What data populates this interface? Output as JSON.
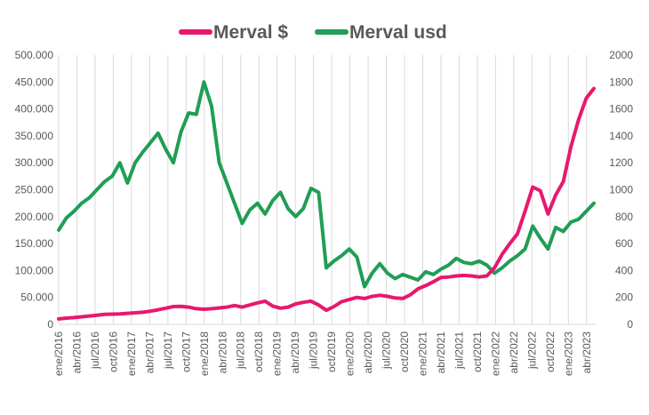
{
  "chart_data": {
    "type": "line",
    "title": "",
    "legend_position": "top",
    "grid": {
      "x": true,
      "y": false
    },
    "x_tick_labels": [
      "ene/2016",
      "abr/2016",
      "jul/2016",
      "oct/2016",
      "ene/2017",
      "abr/2017",
      "jul/2017",
      "oct/2017",
      "ene/2018",
      "abr/2018",
      "jul/2018",
      "oct/2018",
      "ene/2019",
      "abr/2019",
      "jul/2019",
      "oct/2019",
      "ene/2020",
      "abr/2020",
      "jul/2020",
      "oct/2020",
      "ene/2021",
      "abr/2021",
      "jul/2021",
      "oct/2021",
      "ene/2022",
      "abr/2022",
      "jul/2022",
      "oct/2022",
      "ene/2023",
      "abr/2023"
    ],
    "y_left": {
      "range": [
        0,
        500000
      ],
      "ticks": [
        0,
        50000,
        100000,
        150000,
        200000,
        250000,
        300000,
        350000,
        400000,
        450000,
        500000
      ],
      "tick_labels": [
        "0",
        "50.000",
        "100.000",
        "150.000",
        "200.000",
        "250.000",
        "300.000",
        "350.000",
        "400.000",
        "450.000",
        "500.000"
      ]
    },
    "y_right": {
      "range": [
        0,
        2000
      ],
      "ticks": [
        0,
        200,
        400,
        600,
        800,
        1000,
        1200,
        1400,
        1600,
        1800,
        2000
      ],
      "tick_labels": [
        "0",
        "200",
        "400",
        "600",
        "800",
        "1000",
        "1200",
        "1400",
        "1600",
        "1800",
        "2000"
      ]
    },
    "series": [
      {
        "name": "Merval $",
        "axis": "left",
        "color": "#e8186e",
        "points": [
          [
            0,
            10000
          ],
          [
            1,
            11500
          ],
          [
            2,
            12500
          ],
          [
            3,
            14000
          ],
          [
            4,
            15500
          ],
          [
            5,
            17000
          ],
          [
            6,
            18500
          ],
          [
            7,
            19000
          ],
          [
            8,
            19500
          ],
          [
            9,
            20500
          ],
          [
            10,
            21500
          ],
          [
            11,
            22500
          ],
          [
            12,
            24500
          ],
          [
            13,
            27000
          ],
          [
            14,
            30000
          ],
          [
            15,
            33000
          ],
          [
            16,
            33500
          ],
          [
            17,
            32000
          ],
          [
            18,
            29000
          ],
          [
            19,
            28000
          ],
          [
            20,
            29000
          ],
          [
            21,
            30500
          ],
          [
            22,
            32000
          ],
          [
            23,
            35000
          ],
          [
            24,
            32000
          ],
          [
            25,
            36000
          ],
          [
            26,
            40000
          ],
          [
            27,
            43000
          ],
          [
            28,
            34000
          ],
          [
            29,
            30000
          ],
          [
            30,
            32000
          ],
          [
            31,
            38000
          ],
          [
            32,
            41000
          ],
          [
            33,
            43000
          ],
          [
            34,
            36000
          ],
          [
            35,
            26000
          ],
          [
            36,
            33000
          ],
          [
            37,
            42000
          ],
          [
            38,
            46000
          ],
          [
            39,
            50000
          ],
          [
            40,
            48000
          ],
          [
            41,
            52000
          ],
          [
            42,
            54000
          ],
          [
            43,
            52000
          ],
          [
            44,
            49000
          ],
          [
            45,
            48000
          ],
          [
            46,
            55000
          ],
          [
            47,
            66000
          ],
          [
            48,
            72000
          ],
          [
            49,
            79000
          ],
          [
            50,
            87000
          ],
          [
            51,
            88000
          ],
          [
            52,
            90000
          ],
          [
            53,
            91000
          ],
          [
            54,
            90000
          ],
          [
            55,
            88000
          ],
          [
            56,
            90000
          ],
          [
            57,
            105000
          ],
          [
            58,
            130000
          ],
          [
            59,
            150000
          ],
          [
            60,
            168000
          ],
          [
            61,
            210000
          ],
          [
            62,
            255000
          ],
          [
            63,
            248000
          ],
          [
            64,
            205000
          ],
          [
            65,
            240000
          ],
          [
            66,
            265000
          ],
          [
            67,
            330000
          ],
          [
            68,
            380000
          ],
          [
            69,
            420000
          ],
          [
            70,
            438000
          ]
        ]
      },
      {
        "name": "Merval usd",
        "axis": "right",
        "color": "#1f9e55",
        "points": [
          [
            0,
            700
          ],
          [
            1,
            790
          ],
          [
            2,
            840
          ],
          [
            3,
            900
          ],
          [
            4,
            940
          ],
          [
            5,
            1000
          ],
          [
            6,
            1060
          ],
          [
            7,
            1100
          ],
          [
            8,
            1200
          ],
          [
            9,
            1050
          ],
          [
            10,
            1200
          ],
          [
            11,
            1280
          ],
          [
            12,
            1350
          ],
          [
            13,
            1420
          ],
          [
            14,
            1300
          ],
          [
            15,
            1200
          ],
          [
            16,
            1430
          ],
          [
            17,
            1570
          ],
          [
            18,
            1560
          ],
          [
            19,
            1800
          ],
          [
            20,
            1620
          ],
          [
            21,
            1200
          ],
          [
            22,
            1050
          ],
          [
            23,
            900
          ],
          [
            24,
            750
          ],
          [
            25,
            850
          ],
          [
            26,
            900
          ],
          [
            27,
            820
          ],
          [
            28,
            920
          ],
          [
            29,
            980
          ],
          [
            30,
            860
          ],
          [
            31,
            800
          ],
          [
            32,
            860
          ],
          [
            33,
            1010
          ],
          [
            34,
            980
          ],
          [
            35,
            420
          ],
          [
            36,
            470
          ],
          [
            37,
            510
          ],
          [
            38,
            560
          ],
          [
            39,
            500
          ],
          [
            40,
            280
          ],
          [
            41,
            380
          ],
          [
            42,
            450
          ],
          [
            43,
            380
          ],
          [
            44,
            340
          ],
          [
            45,
            370
          ],
          [
            46,
            350
          ],
          [
            47,
            330
          ],
          [
            48,
            390
          ],
          [
            49,
            370
          ],
          [
            50,
            410
          ],
          [
            51,
            440
          ],
          [
            52,
            490
          ],
          [
            53,
            460
          ],
          [
            54,
            450
          ],
          [
            55,
            470
          ],
          [
            56,
            440
          ],
          [
            57,
            380
          ],
          [
            58,
            420
          ],
          [
            59,
            470
          ],
          [
            60,
            510
          ],
          [
            61,
            560
          ],
          [
            62,
            730
          ],
          [
            63,
            640
          ],
          [
            64,
            560
          ],
          [
            65,
            720
          ],
          [
            66,
            690
          ],
          [
            67,
            760
          ],
          [
            68,
            780
          ],
          [
            69,
            840
          ],
          [
            70,
            900
          ]
        ]
      }
    ]
  }
}
